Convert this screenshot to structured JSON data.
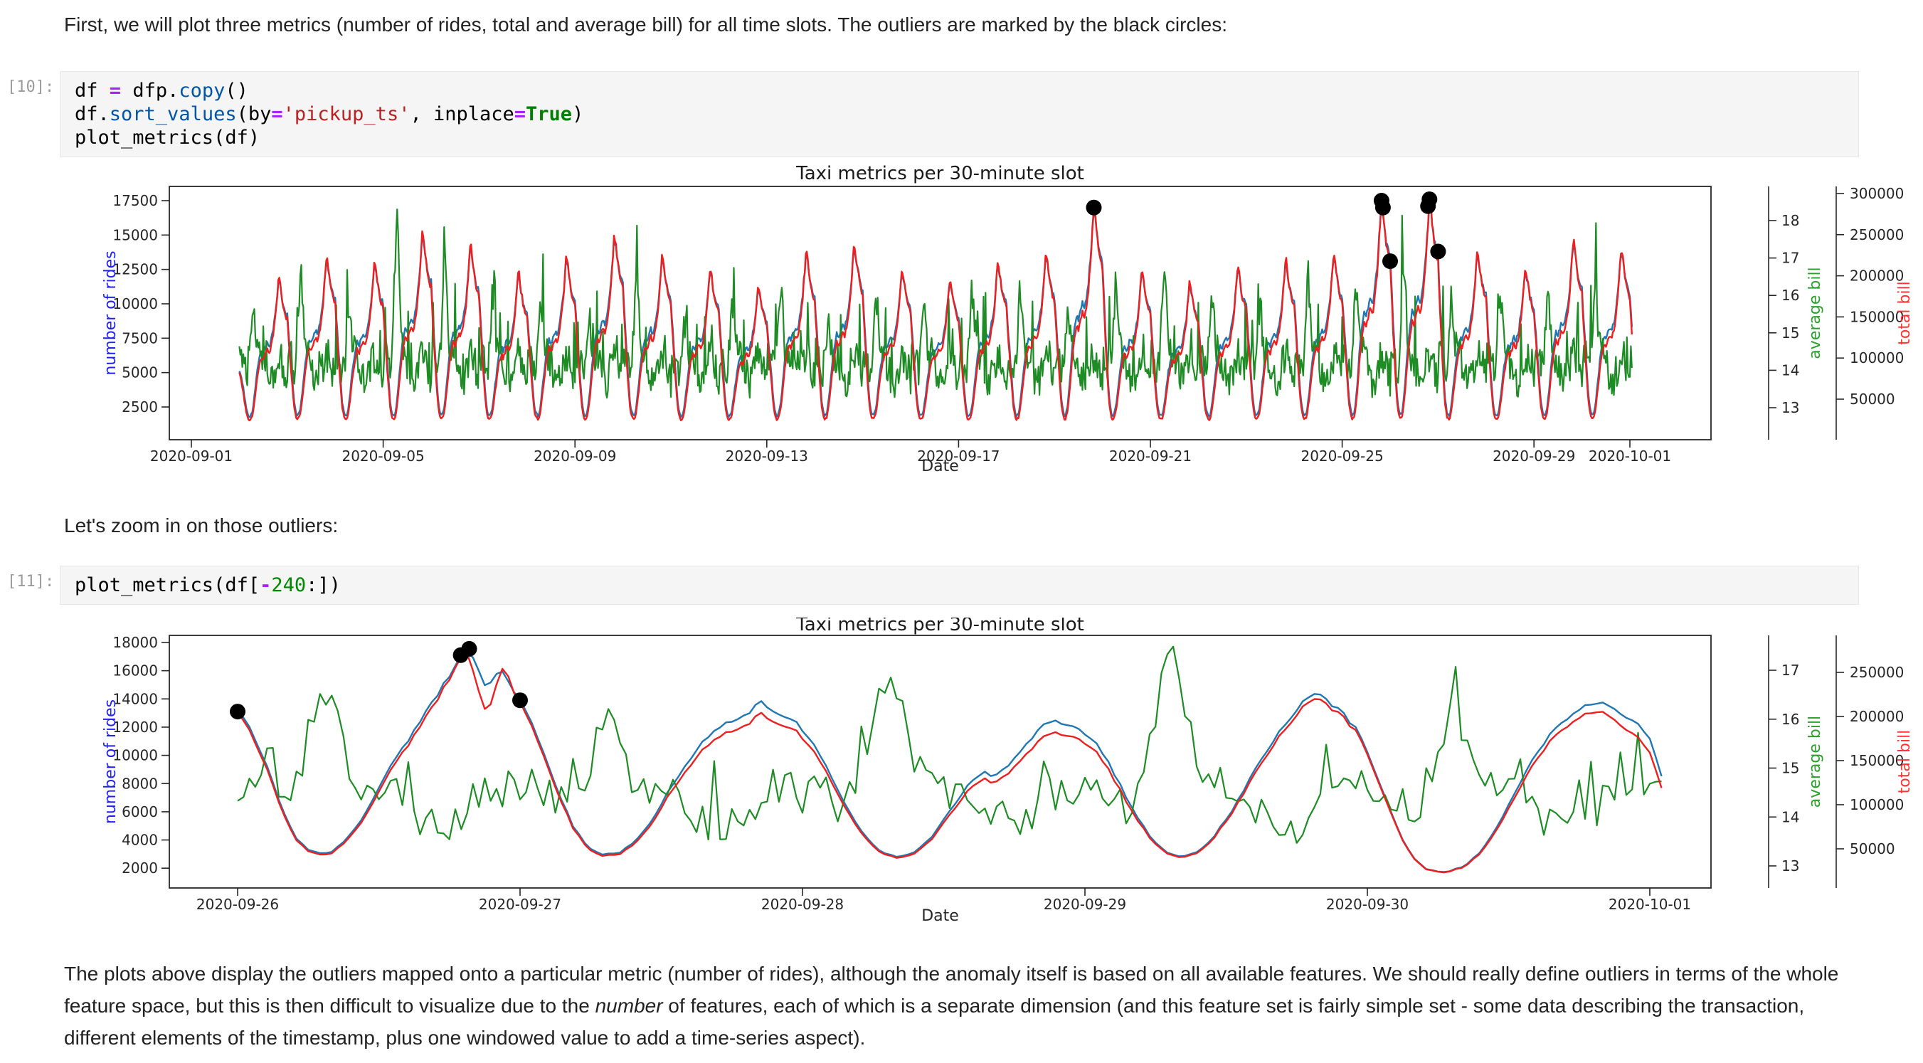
{
  "texts": {
    "intro": "First, we will plot three metrics (number of rides, total and average bill) for all time slots. The outliers are marked by the black circles:",
    "zoom": "Let's zoom in on those outliers:",
    "closing_segments": [
      {
        "text": "The plots above display the outliers mapped onto a particular metric (number of rides), although the anomaly itself is based on all available features. We should really define outliers in terms of the whole feature space, but this is then difficult to visualize due to the ",
        "italic": false
      },
      {
        "text": "number",
        "italic": true
      },
      {
        "text": " of features, each of which is a separate dimension (and this feature set is fairly simple set - some data describing the transaction, different elements of the timestamp, plus one windowed value to add a time-series aspect).",
        "italic": false
      }
    ]
  },
  "cells": [
    {
      "prompt": "[10]:",
      "lines": [
        [
          [
            "df",
            "p"
          ],
          [
            " ",
            "p"
          ],
          [
            "=",
            "o"
          ],
          [
            " ",
            "p"
          ],
          [
            "dfp",
            "p"
          ],
          [
            ".",
            "p"
          ],
          [
            "copy",
            "f"
          ],
          [
            "()",
            "p"
          ]
        ],
        [
          [
            "df",
            "p"
          ],
          [
            ".",
            "p"
          ],
          [
            "sort_values",
            "f"
          ],
          [
            "(by",
            "p"
          ],
          [
            "=",
            "o"
          ],
          [
            "'pickup_ts'",
            "s"
          ],
          [
            ", inplace",
            "p"
          ],
          [
            "=",
            "o"
          ],
          [
            "True",
            "k"
          ],
          [
            ")",
            "p"
          ]
        ],
        [
          [
            "plot_metrics(df)",
            "p"
          ]
        ]
      ]
    },
    {
      "prompt": "[11]:",
      "lines": [
        [
          [
            "plot_metrics(df[",
            "p"
          ],
          [
            "-",
            "o"
          ],
          [
            "240",
            "n"
          ],
          [
            ":])",
            "p"
          ]
        ]
      ]
    }
  ],
  "code_style": {
    "operator_color": "#AA22FF",
    "function_color": "#0055aa",
    "string_color": "#BA2121",
    "keyword_color": "#008000",
    "number_color": "#008800",
    "cell_background": "#f5f5f5",
    "prompt_color": "#9b9b9b"
  },
  "chart_data": [
    {
      "type": "line",
      "title": "Taxi metrics per 30-minute slot",
      "xlabel": "Date",
      "x_ticks": [
        "2020-09-01",
        "2020-09-05",
        "2020-09-09",
        "2020-09-13",
        "2020-09-17",
        "2020-09-21",
        "2020-09-25",
        "2020-09-29",
        "2020-10-01"
      ],
      "axes": {
        "rides": {
          "label": "number of rides",
          "label_color": "#2222ee",
          "ticks": [
            "17500",
            "15000",
            "12500",
            "10000",
            "7500",
            "5000",
            "2500"
          ],
          "ylim": [
            120,
            18530
          ]
        },
        "average_bill": {
          "label": "average bill",
          "label_color": "#2ca02c",
          "ticks": [
            "18",
            "17",
            "16",
            "15",
            "14",
            "13"
          ],
          "ylim": [
            12.4,
            18.9
          ]
        },
        "total_bill": {
          "label": "total bill",
          "label_color": "#ff3333",
          "ticks": [
            "300000",
            "250000",
            "200000",
            "150000",
            "100000",
            "50000"
          ],
          "ylim": [
            1000,
            310000
          ]
        }
      },
      "series": [
        {
          "name": "number of rides",
          "color": "#1f77b4"
        },
        {
          "name": "average bill",
          "color": "#1e8c25"
        },
        {
          "name": "total bill",
          "color": "#ef1f1f"
        }
      ],
      "outlier_marker": "black circle",
      "outliers_day_value": [
        [
          18.82,
          17000
        ],
        [
          24.82,
          17500
        ],
        [
          24.85,
          17000
        ],
        [
          25.0,
          13100
        ],
        [
          25.79,
          17100
        ],
        [
          25.82,
          17600
        ],
        [
          26.0,
          13800
        ]
      ],
      "synth": {
        "seed": 1337,
        "t0": 1.0,
        "t1": 30.05,
        "step_days": 0.0208333,
        "vmin": 1650,
        "day_peaks": [
          6500,
          11800,
          13400,
          12900,
          15000,
          14200,
          12100,
          13300,
          14900,
          13400,
          12400,
          11200,
          13700,
          14300,
          12400,
          11700,
          12900,
          13600,
          17000,
          12200,
          11400,
          12600,
          13100,
          13500,
          17500,
          17600,
          13800,
          12500,
          14500,
          13900,
          13000
        ],
        "daily_profile": [
          [
            0,
            0.74
          ],
          [
            0.03,
            0.6
          ],
          [
            0.06,
            0.46
          ],
          [
            0.1,
            0.29
          ],
          [
            0.14,
            0.12
          ],
          [
            0.18,
            0.035
          ],
          [
            0.22,
            0.015
          ],
          [
            0.26,
            0.04
          ],
          [
            0.3,
            0.13
          ],
          [
            0.34,
            0.25
          ],
          [
            0.38,
            0.36
          ],
          [
            0.42,
            0.44
          ],
          [
            0.46,
            0.49
          ],
          [
            0.5,
            0.47
          ],
          [
            0.54,
            0.51
          ],
          [
            0.58,
            0.55
          ],
          [
            0.62,
            0.52
          ],
          [
            0.66,
            0.56
          ],
          [
            0.7,
            0.63
          ],
          [
            0.74,
            0.72
          ],
          [
            0.78,
            0.86
          ],
          [
            0.82,
            1
          ],
          [
            0.85,
            0.95
          ],
          [
            0.88,
            0.885
          ],
          [
            0.91,
            0.83
          ],
          [
            0.94,
            0.79
          ],
          [
            0.97,
            0.76
          ],
          [
            1,
            0.74
          ]
        ],
        "green_base": 14.05,
        "green_morning_amp": [
          2.4,
          2.1,
          2.8,
          2.0,
          4.1,
          3.3,
          2.2,
          1.9,
          1.6,
          2.4,
          1.4,
          1.9,
          2.5,
          1.5,
          2.1,
          1.8,
          2.3,
          1.9,
          1.5,
          2.5,
          2.9,
          2.1,
          1.8,
          2.7,
          2.3,
          3.2,
          2.1,
          2.4,
          2.0,
          2.3,
          2.2
        ],
        "green_clamp": [
          13.15,
          18.3
        ],
        "avg_for_total_base": 13.6,
        "avg_for_total_span": 3.4
      }
    },
    {
      "type": "line",
      "title": "Taxi metrics per 30-minute slot",
      "xlabel": "Date",
      "x_ticks": [
        "2020-09-26",
        "2020-09-27",
        "2020-09-28",
        "2020-09-29",
        "2020-09-30",
        "2020-10-01"
      ],
      "axes": {
        "rides": {
          "label": "number of rides",
          "label_color": "#2222ee",
          "ticks": [
            "18000",
            "16000",
            "14000",
            "12000",
            "10000",
            "8000",
            "6000",
            "4000",
            "2000"
          ],
          "ylim": [
            600,
            18500
          ]
        },
        "average_bill": {
          "label": "average bill",
          "label_color": "#2ca02c",
          "ticks": [
            "17",
            "16",
            "15",
            "14",
            "13"
          ],
          "ylim": [
            12.5,
            17.6
          ]
        },
        "total_bill": {
          "label": "total bill",
          "label_color": "#ff3333",
          "ticks": [
            "250000",
            "200000",
            "150000",
            "100000",
            "50000"
          ],
          "ylim": [
            10000,
            262000
          ]
        }
      },
      "series": [
        {
          "name": "number of rides",
          "color": "#1f77b4"
        },
        {
          "name": "average bill",
          "color": "#1e8c25"
        },
        {
          "name": "total bill",
          "color": "#ef1f1f"
        }
      ],
      "outlier_marker": "black circle",
      "outliers_day_value": [
        [
          0.0,
          13100
        ],
        [
          0.79,
          17100
        ],
        [
          0.82,
          17550
        ],
        [
          1.0,
          13900
        ]
      ],
      "synth": {
        "seed": 777,
        "t0": 0.0,
        "t1": 5.05,
        "step_days": 0.0208333,
        "rides_keypoints": [
          [
            0,
            13300
          ],
          [
            0.05,
            11700
          ],
          [
            0.1,
            9400
          ],
          [
            0.15,
            6700
          ],
          [
            0.2,
            4300
          ],
          [
            0.24,
            3400
          ],
          [
            0.28,
            3050
          ],
          [
            0.33,
            3100
          ],
          [
            0.38,
            3900
          ],
          [
            0.44,
            5400
          ],
          [
            0.5,
            7700
          ],
          [
            0.56,
            9800
          ],
          [
            0.62,
            11600
          ],
          [
            0.68,
            13600
          ],
          [
            0.73,
            15000
          ],
          [
            0.77,
            16300
          ],
          [
            0.79,
            17100
          ],
          [
            0.82,
            17550
          ],
          [
            0.85,
            16200
          ],
          [
            0.87,
            15100
          ],
          [
            0.9,
            15200
          ],
          [
            0.93,
            16000
          ],
          [
            0.96,
            15100
          ],
          [
            1,
            13900
          ],
          [
            1.04,
            12300
          ],
          [
            1.09,
            9800
          ],
          [
            1.14,
            7200
          ],
          [
            1.19,
            4900
          ],
          [
            1.24,
            3500
          ],
          [
            1.29,
            3000
          ],
          [
            1.35,
            3050
          ],
          [
            1.41,
            3900
          ],
          [
            1.47,
            5500
          ],
          [
            1.53,
            7600
          ],
          [
            1.6,
            9700
          ],
          [
            1.66,
            11300
          ],
          [
            1.72,
            12200
          ],
          [
            1.78,
            12600
          ],
          [
            1.82,
            13200
          ],
          [
            1.85,
            13800
          ],
          [
            1.89,
            13300
          ],
          [
            1.94,
            12700
          ],
          [
            1.99,
            12100
          ],
          [
            2.04,
            10700
          ],
          [
            2.09,
            8900
          ],
          [
            2.14,
            6900
          ],
          [
            2.19,
            5100
          ],
          [
            2.24,
            3800
          ],
          [
            2.29,
            3000
          ],
          [
            2.34,
            2750
          ],
          [
            2.4,
            3100
          ],
          [
            2.47,
            4500
          ],
          [
            2.53,
            6300
          ],
          [
            2.59,
            7900
          ],
          [
            2.64,
            8800
          ],
          [
            2.68,
            8500
          ],
          [
            2.73,
            9300
          ],
          [
            2.79,
            10800
          ],
          [
            2.84,
            11900
          ],
          [
            2.89,
            12450
          ],
          [
            2.94,
            12200
          ],
          [
            2.99,
            11700
          ],
          [
            3.04,
            10800
          ],
          [
            3.09,
            9200
          ],
          [
            3.14,
            7300
          ],
          [
            3.19,
            5400
          ],
          [
            3.24,
            4000
          ],
          [
            3.29,
            3100
          ],
          [
            3.34,
            2800
          ],
          [
            3.4,
            3100
          ],
          [
            3.46,
            4300
          ],
          [
            3.53,
            6400
          ],
          [
            3.59,
            8600
          ],
          [
            3.65,
            10500
          ],
          [
            3.71,
            12300
          ],
          [
            3.77,
            13700
          ],
          [
            3.82,
            14500
          ],
          [
            3.86,
            13800
          ],
          [
            3.91,
            13100
          ],
          [
            3.96,
            11900
          ],
          [
            4.01,
            9800
          ],
          [
            4.06,
            7200
          ],
          [
            4.11,
            4600
          ],
          [
            4.16,
            2800
          ],
          [
            4.21,
            1900
          ],
          [
            4.27,
            1700
          ],
          [
            4.33,
            2000
          ],
          [
            4.39,
            2900
          ],
          [
            4.46,
            4900
          ],
          [
            4.53,
            7700
          ],
          [
            4.59,
            9900
          ],
          [
            4.65,
            11500
          ],
          [
            4.71,
            12700
          ],
          [
            4.77,
            13500
          ],
          [
            4.82,
            13800
          ],
          [
            4.86,
            13400
          ],
          [
            4.91,
            12900
          ],
          [
            4.96,
            12100
          ],
          [
            5,
            11100
          ],
          [
            5.05,
            8100
          ]
        ],
        "total_ratio_keypoints": [
          [
            0,
            0.985
          ],
          [
            0.2,
            0.97
          ],
          [
            0.5,
            0.965
          ],
          [
            0.7,
            0.975
          ],
          [
            0.81,
            1
          ],
          [
            0.84,
            0.93
          ],
          [
            0.87,
            0.885
          ],
          [
            0.9,
            0.9
          ],
          [
            0.93,
            0.995
          ],
          [
            0.95,
            1.04
          ],
          [
            0.97,
            1
          ],
          [
            1,
            0.985
          ],
          [
            1.2,
            0.97
          ],
          [
            1.5,
            0.96
          ],
          [
            1.7,
            0.945
          ],
          [
            1.85,
            0.94
          ],
          [
            2.1,
            0.96
          ],
          [
            2.3,
            0.975
          ],
          [
            2.6,
            0.95
          ],
          [
            2.85,
            0.93
          ],
          [
            3.1,
            0.95
          ],
          [
            3.3,
            0.98
          ],
          [
            3.6,
            0.97
          ],
          [
            3.82,
            0.975
          ],
          [
            4,
            0.985
          ],
          [
            4.25,
            0.99
          ],
          [
            4.5,
            0.96
          ],
          [
            4.82,
            0.955
          ],
          [
            5.05,
            0.9
          ]
        ],
        "green_base": 14.2,
        "green_morning_amp": [
          2.7,
          2.0,
          3.0,
          3.3,
          2.3,
          2.3
        ],
        "green_clamp": [
          13.25,
          17.5
        ]
      }
    }
  ]
}
